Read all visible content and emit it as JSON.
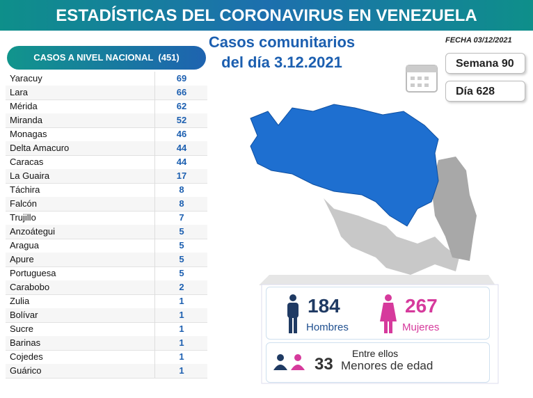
{
  "header": {
    "title": "ESTADÍSTICAS DEL CORONAVIRUS EN VENEZUELA"
  },
  "subtitle": {
    "line1": "Casos comunitarios",
    "line2": "del día 3.12.2021"
  },
  "date": "FECHA 03/12/2021",
  "week": "Semana 90",
  "day": "Día 628",
  "table": {
    "title": "CASOS A NIVEL NACIONAL",
    "total": "(451)",
    "rows": [
      [
        "Yaracuy",
        69
      ],
      [
        "Lara",
        66
      ],
      [
        "Mérida",
        62
      ],
      [
        "Miranda",
        52
      ],
      [
        "Monagas",
        46
      ],
      [
        "Delta Amacuro",
        44
      ],
      [
        "Caracas",
        44
      ],
      [
        "La Guaira",
        17
      ],
      [
        "Táchira",
        8
      ],
      [
        "Falcón",
        8
      ],
      [
        "Trujillo",
        7
      ],
      [
        "Anzoátegui",
        5
      ],
      [
        "Aragua",
        5
      ],
      [
        "Apure",
        5
      ],
      [
        "Portuguesa",
        5
      ],
      [
        "Carabobo",
        2
      ],
      [
        "Zulia",
        1
      ],
      [
        "Bolívar",
        1
      ],
      [
        "Sucre",
        1
      ],
      [
        "Barinas",
        1
      ],
      [
        "Cojedes",
        1
      ],
      [
        "Guárico",
        1
      ]
    ]
  },
  "stats": {
    "men": 184,
    "men_label": "Hombres",
    "women": 267,
    "women_label": "Mujeres",
    "among": "Entre ellos",
    "minors": 33,
    "minors_label": "Menores de edad"
  }
}
